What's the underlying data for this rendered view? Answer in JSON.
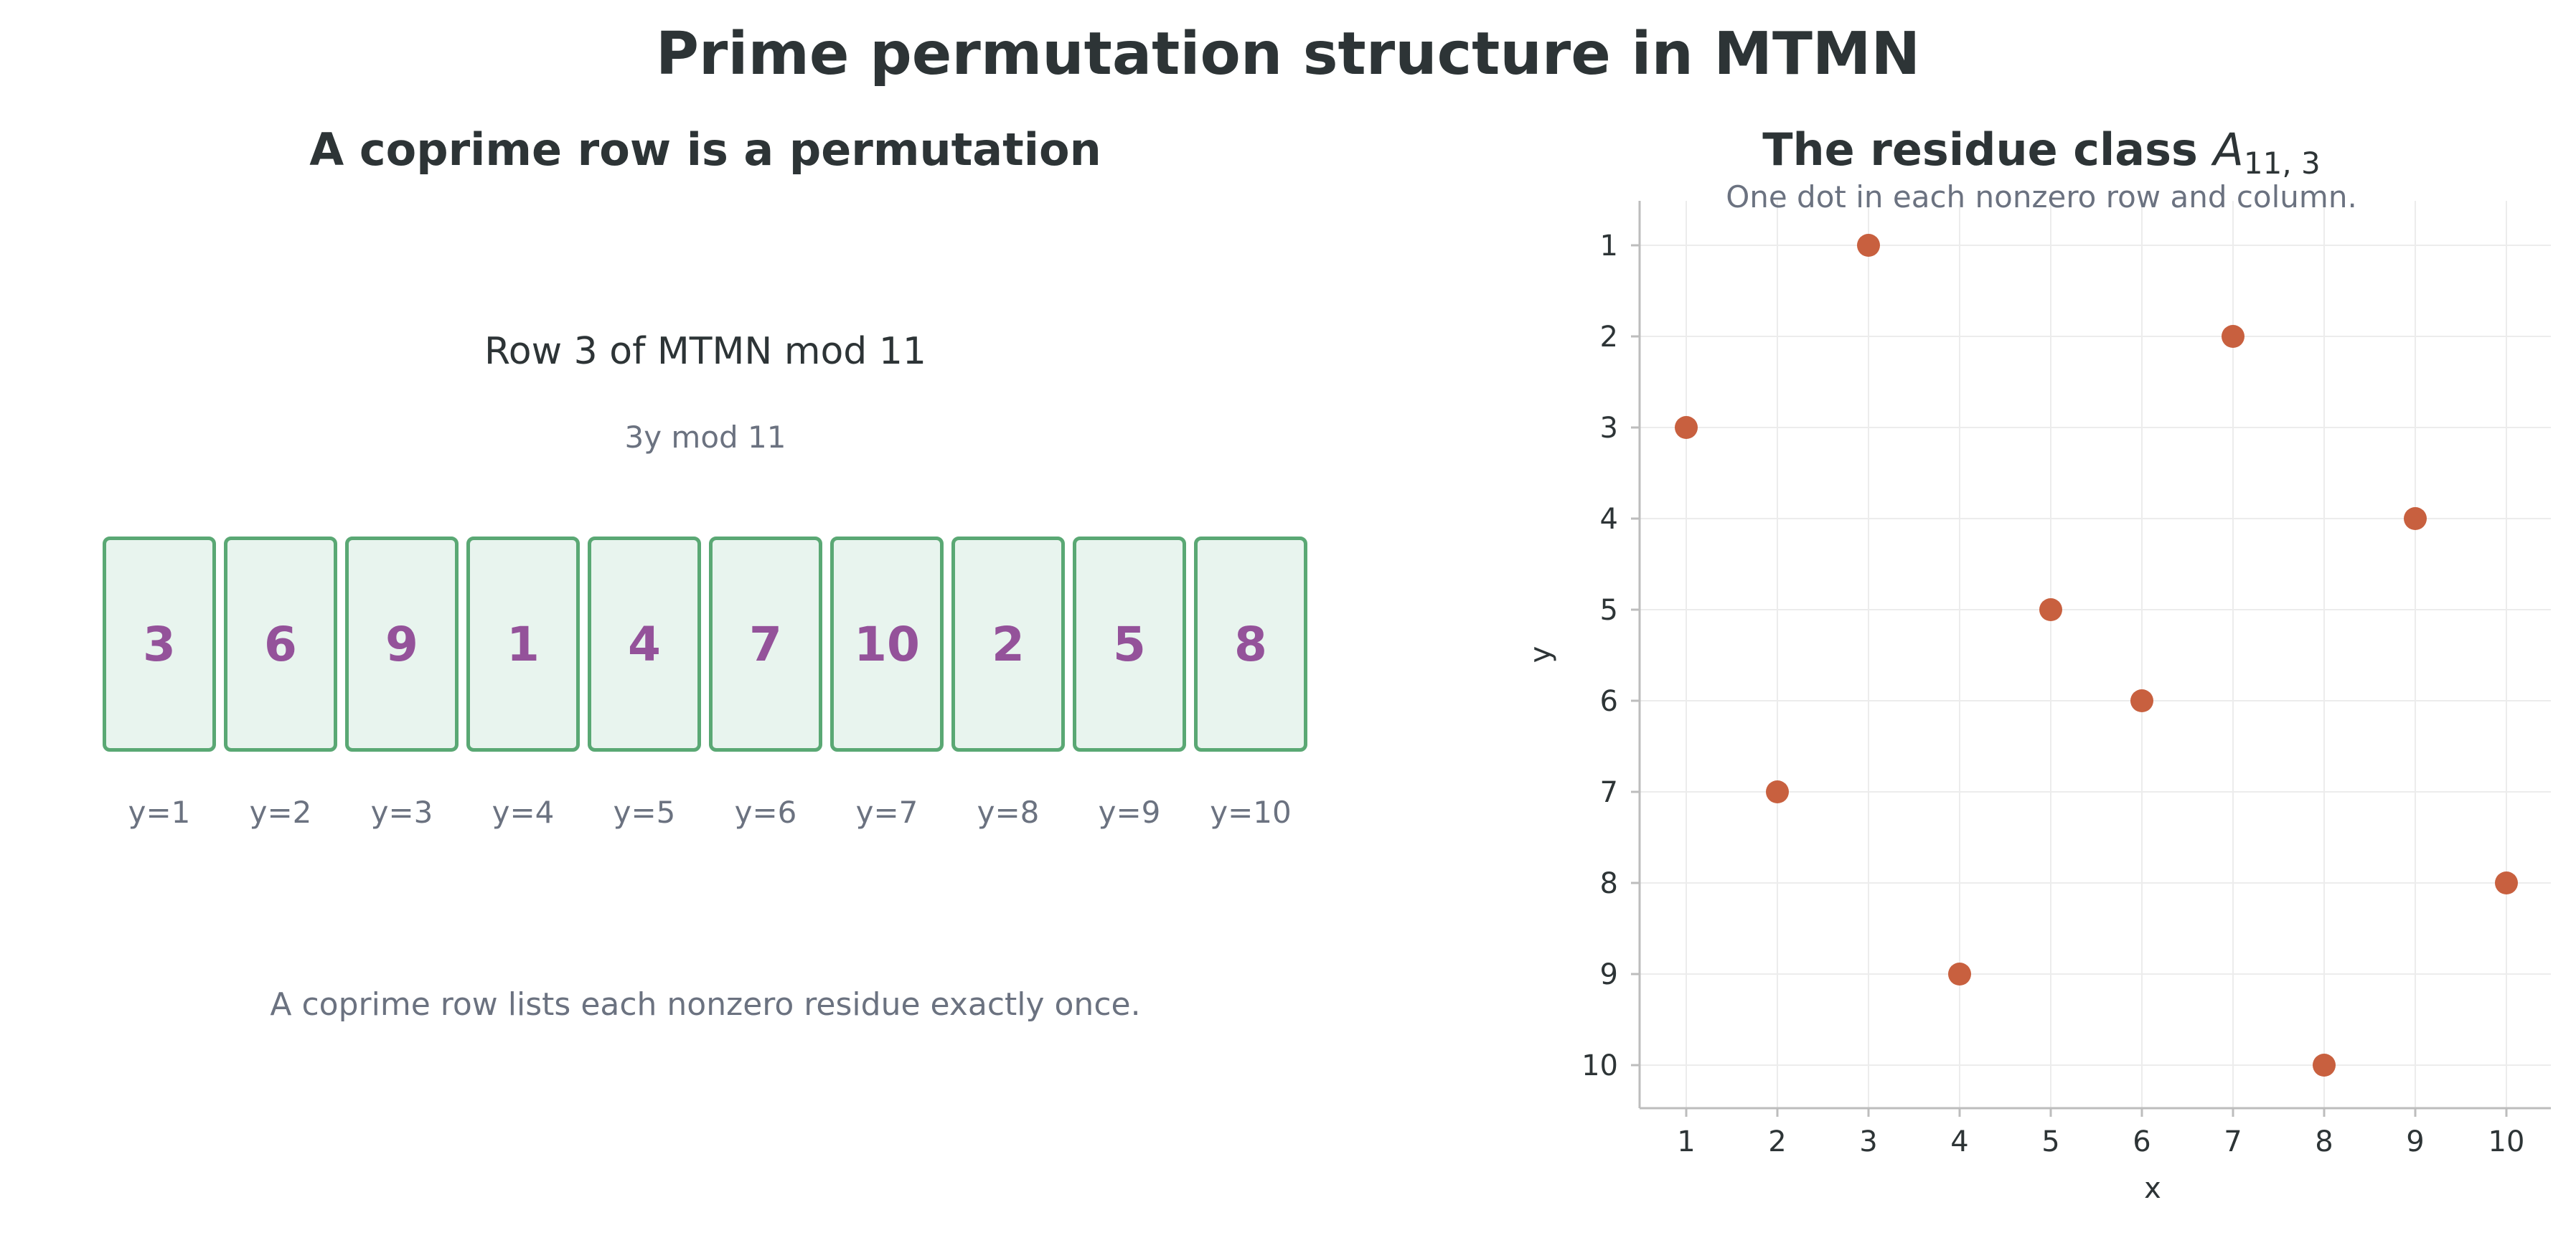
{
  "title": "Prime permutation structure in MTMN",
  "left_panel": {
    "title": "A coprime row is a permutation",
    "row_heading": "Row 3 of MTMN mod 11",
    "formula": "3y mod 11",
    "cells": [
      {
        "value": "3",
        "label": "y=1"
      },
      {
        "value": "6",
        "label": "y=2"
      },
      {
        "value": "9",
        "label": "y=3"
      },
      {
        "value": "1",
        "label": "y=4"
      },
      {
        "value": "4",
        "label": "y=5"
      },
      {
        "value": "7",
        "label": "y=6"
      },
      {
        "value": "10",
        "label": "y=7"
      },
      {
        "value": "2",
        "label": "y=8"
      },
      {
        "value": "5",
        "label": "y=9"
      },
      {
        "value": "8",
        "label": "y=10"
      }
    ],
    "note": "A coprime row lists each nonzero residue exactly once.",
    "colors": {
      "cell_border": "#5aa874",
      "cell_fill": "#e8f4ee",
      "cell_text": "#94529a"
    }
  },
  "right_panel": {
    "title_prefix": "The residue class ",
    "title_symbol": "A",
    "title_subscript": "11, 3",
    "subtitle": "One dot in each nonzero row and column."
  },
  "chart_data": {
    "type": "scatter",
    "title": "The residue class A_{11, 3}",
    "subtitle": "One dot in each nonzero row and column.",
    "xlabel": "x",
    "ylabel": "y",
    "xlim": [
      1,
      10
    ],
    "ylim": [
      1,
      10
    ],
    "y_inverted": true,
    "grid": true,
    "x_ticks": [
      1,
      2,
      3,
      4,
      5,
      6,
      7,
      8,
      9,
      10
    ],
    "y_ticks": [
      1,
      2,
      3,
      4,
      5,
      6,
      7,
      8,
      9,
      10
    ],
    "points": [
      {
        "x": 3,
        "y": 1
      },
      {
        "x": 7,
        "y": 2
      },
      {
        "x": 1,
        "y": 3
      },
      {
        "x": 9,
        "y": 4
      },
      {
        "x": 5,
        "y": 5
      },
      {
        "x": 6,
        "y": 6
      },
      {
        "x": 2,
        "y": 7
      },
      {
        "x": 10,
        "y": 8
      },
      {
        "x": 4,
        "y": 9
      },
      {
        "x": 8,
        "y": 10
      }
    ],
    "point_color": "#c8603f"
  }
}
